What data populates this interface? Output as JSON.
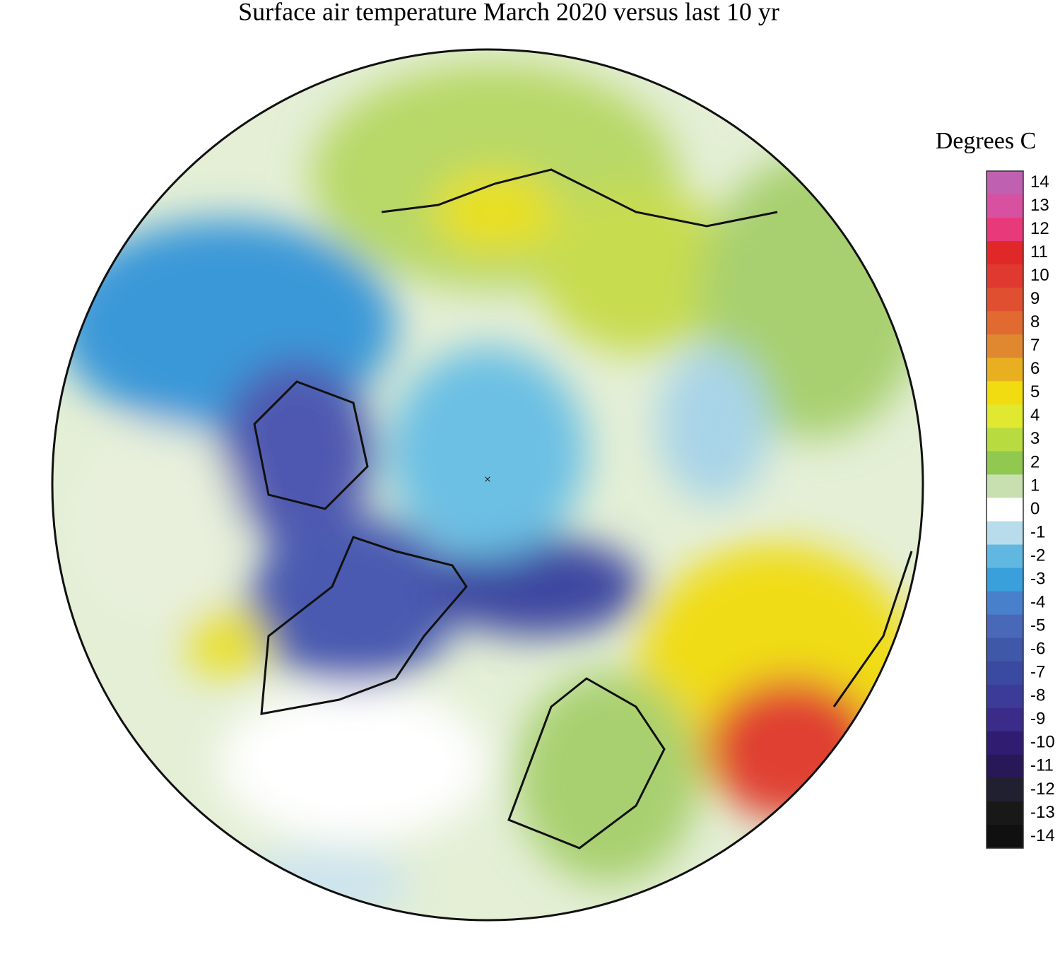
{
  "title": "Surface air temperature March 2020 versus last 10 yr",
  "colorbar": {
    "label": "Degrees C",
    "lim": [
      -14,
      14
    ],
    "ticks": [
      14,
      13,
      12,
      11,
      10,
      9,
      8,
      7,
      6,
      5,
      4,
      3,
      2,
      1,
      0,
      -1,
      -2,
      -3,
      -4,
      -5,
      -6,
      -7,
      -8,
      -9,
      -10,
      -11,
      -12,
      -13,
      -14
    ],
    "colors": [
      "#c060b0",
      "#d850a0",
      "#e83a7a",
      "#e02828",
      "#e03a30",
      "#e05030",
      "#e06a30",
      "#e08830",
      "#e8b020",
      "#f0dc10",
      "#e0e830",
      "#b8dc40",
      "#90c850",
      "#c8e0b0",
      "#ffffff",
      "#b8dcec",
      "#60b8e0",
      "#3aa0dc",
      "#4880cc",
      "#4a68b8",
      "#4058a8",
      "#3a4aa0",
      "#3c3c98",
      "#3a2c88",
      "#301c70",
      "#281858",
      "#202030",
      "#181818",
      "#101010"
    ]
  }
}
